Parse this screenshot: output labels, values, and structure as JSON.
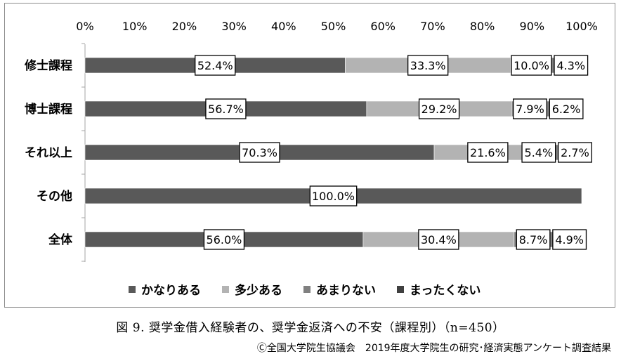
{
  "chart_data": {
    "type": "bar",
    "orientation": "horizontal",
    "stacked": true,
    "percent": true,
    "x_ticks": [
      "0%",
      "10%",
      "20%",
      "30%",
      "40%",
      "50%",
      "60%",
      "70%",
      "80%",
      "90%",
      "100%"
    ],
    "xlim": [
      0,
      100
    ],
    "axis_position": "top",
    "legend_position": "bottom",
    "categories": [
      "修士課程",
      "博士課程",
      "それ以上",
      "その他",
      "全体"
    ],
    "series": [
      {
        "name": "かなりある",
        "color": "#595959",
        "values": [
          52.4,
          56.7,
          70.3,
          100.0,
          56.0
        ],
        "labels": [
          "52.4%",
          "56.7%",
          "70.3%",
          "100.0%",
          "56.0%"
        ]
      },
      {
        "name": "多少ある",
        "color": "#b3b3b3",
        "values": [
          33.3,
          29.2,
          21.6,
          0,
          30.4
        ],
        "labels": [
          "33.3%",
          "29.2%",
          "21.6%",
          "",
          "30.4%"
        ]
      },
      {
        "name": "あまりない",
        "color": "#808080",
        "values": [
          10.0,
          7.9,
          5.4,
          0,
          8.7
        ],
        "labels": [
          "10.0%",
          "7.9%",
          "5.4%",
          "",
          "8.7%"
        ]
      },
      {
        "name": "まったくない",
        "color": "#404040",
        "values": [
          4.3,
          6.2,
          2.7,
          0,
          4.9
        ],
        "labels": [
          "4.3%",
          "6.2%",
          "2.7%",
          "",
          "4.9%"
        ]
      }
    ]
  },
  "caption": "図 9. 奨学金借入経験者の、奨学金返済への不安（課程別）（n=450）",
  "source": "Ⓒ全国大学院生協議会　2019年度大学院生の研究･経済実態アンケート調査結果"
}
